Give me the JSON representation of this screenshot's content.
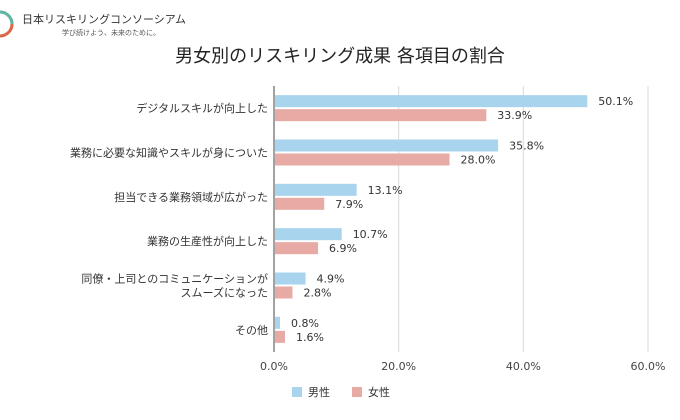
{
  "header": {
    "org_name": "日本リスキリングコンソーシアム",
    "org_tagline": "学び続けよう、未来のために。",
    "logo_icon": "swirl-logo-icon"
  },
  "colors": {
    "male": "#a8d4ee",
    "female": "#e8aaa5",
    "grid": "#d9d9d9",
    "axis": "#444444"
  },
  "chart_data": {
    "type": "bar",
    "orientation": "horizontal",
    "title": "男女別のリスキリング成果 各項目の割合",
    "xlabel": "",
    "ylabel": "",
    "xlim": [
      0,
      60
    ],
    "xticks": [
      "0.0%",
      "20.0%",
      "40.0%",
      "60.0%"
    ],
    "xtick_values": [
      0,
      20,
      40,
      60
    ],
    "grid": true,
    "legend_position": "bottom",
    "categories": [
      [
        "デジタルスキルが向上した"
      ],
      [
        "業務に必要な知識やスキルが身についた"
      ],
      [
        "担当できる業務領域が広がった"
      ],
      [
        "業務の生産性が向上した"
      ],
      [
        "同僚・上司とのコミュニケーションが",
        "スムーズになった"
      ],
      [
        "その他"
      ]
    ],
    "series": [
      {
        "name": "男性",
        "values": [
          50.1,
          35.8,
          13.1,
          10.7,
          4.9,
          0.8
        ],
        "labels": [
          "50.1%",
          "35.8%",
          "13.1%",
          "10.7%",
          "4.9%",
          "0.8%"
        ]
      },
      {
        "name": "女性",
        "values": [
          33.9,
          28.0,
          7.9,
          6.9,
          2.8,
          1.6
        ],
        "labels": [
          "33.9%",
          "28.0%",
          "7.9%",
          "6.9%",
          "2.8%",
          "1.6%"
        ]
      }
    ]
  }
}
